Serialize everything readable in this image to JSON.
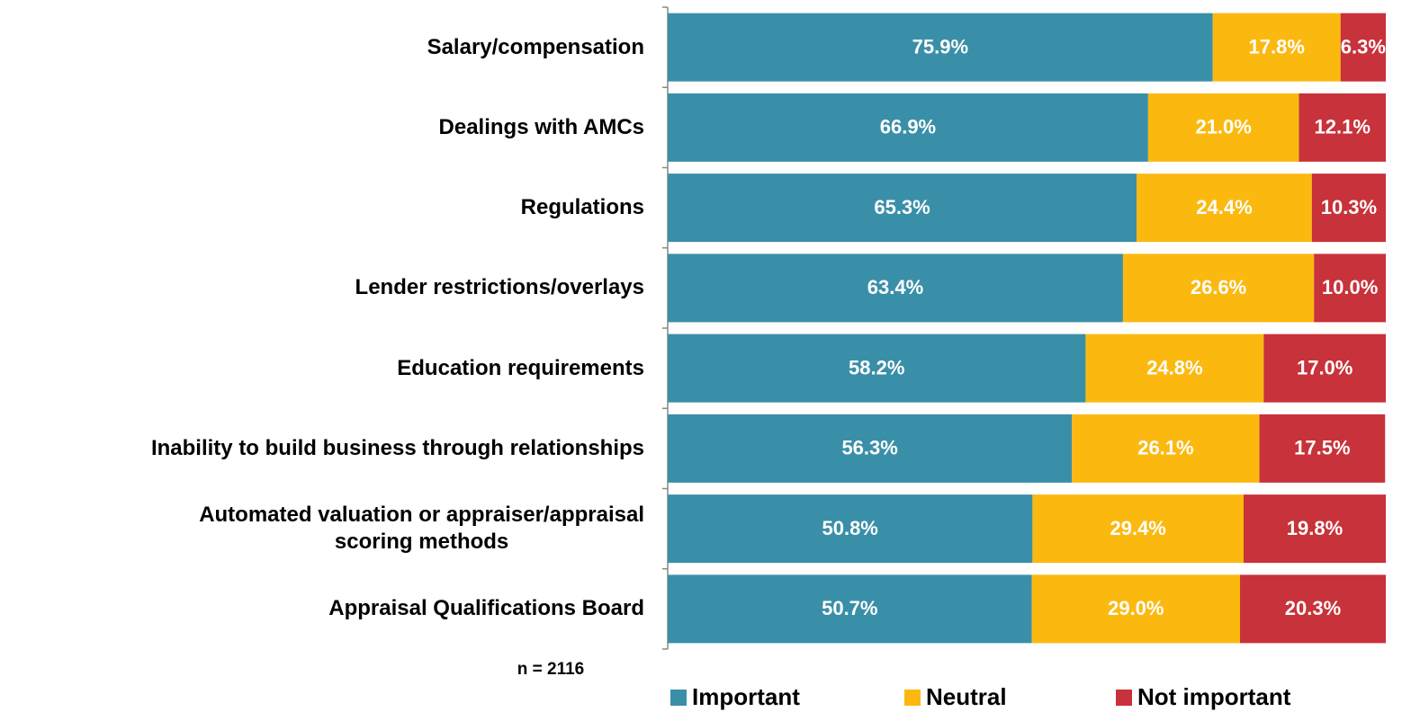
{
  "chart_data": {
    "type": "stacked_bar_horizontal",
    "categories": [
      "Salary/compensation",
      "Dealings with AMCs",
      "Regulations",
      "Lender restrictions/overlays",
      "Education requirements",
      "Inability to build business through relationships",
      "Automated valuation or appraiser/appraisal\nscoring methods",
      "Appraisal Qualifications Board"
    ],
    "series": [
      {
        "name": "Important",
        "color": "#3a8fa8",
        "values": [
          75.9,
          66.9,
          65.3,
          63.4,
          58.2,
          56.3,
          50.8,
          50.7
        ],
        "value_labels": [
          "75.9%",
          "66.9%",
          "65.3%",
          "63.4%",
          "58.2%",
          "56.3%",
          "50.8%",
          "50.7%"
        ]
      },
      {
        "name": "Neutral",
        "color": "#fbb910",
        "values": [
          17.8,
          21.0,
          24.4,
          26.6,
          24.8,
          26.1,
          29.4,
          29.0
        ],
        "value_labels": [
          "17.8%",
          "21.0%",
          "24.4%",
          "26.6%",
          "24.8%",
          "26.1%",
          "29.4%",
          "29.0%"
        ]
      },
      {
        "name": "Not important",
        "color": "#c8323a",
        "values": [
          6.3,
          12.1,
          10.3,
          10.0,
          17.0,
          17.5,
          19.8,
          20.3
        ],
        "value_labels": [
          "6.3%",
          "12.1%",
          "10.3%",
          "10.0%",
          "17.0%",
          "17.5%",
          "19.8%",
          "20.3%"
        ]
      }
    ],
    "xlim": [
      0,
      100
    ],
    "annotation": "n = 2116",
    "legend": "bottom"
  }
}
